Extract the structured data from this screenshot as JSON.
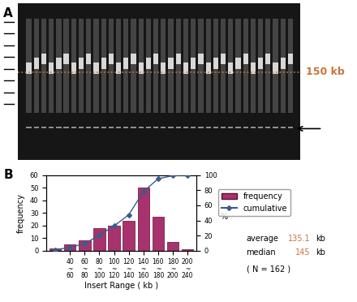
{
  "panel_a": {
    "panel_label": "A",
    "marker_label": "150 kb",
    "marker_color": "#c8743a"
  },
  "chart_data": {
    "type": "bar",
    "panel_label": "B",
    "categories": [
      null,
      "40\n~\n60",
      "60\n~\n80",
      "80\n~\n100",
      "100\n~\n120",
      "120\n~\n140",
      "140\n~\n160",
      "160\n~\n180",
      "180\n~\n200",
      "200\n~\n240"
    ],
    "series": [
      {
        "name": "frequency",
        "type": "bar",
        "color": "#a8326e",
        "values": [
          2,
          5,
          8,
          18,
          20,
          24,
          50,
          27,
          7,
          1
        ]
      },
      {
        "name": "cumulative",
        "type": "line",
        "axis": "y2",
        "color": "#3b5b8c",
        "marker": "diamond",
        "line_style": "solid",
        "values": [
          1.2,
          4.3,
          9.3,
          20.4,
          32.7,
          47.5,
          78.4,
          95.1,
          99.4,
          100
        ]
      }
    ],
    "x_label": "Insert Range ( kb )",
    "y_label": "frequency",
    "y2_label": "%",
    "ylim": [
      0,
      60
    ],
    "yticks": [
      0,
      10,
      20,
      30,
      40,
      50,
      60
    ],
    "y2lim": [
      0,
      100
    ],
    "y2ticks": [
      0,
      20,
      40,
      60,
      80,
      100
    ],
    "legend": "right",
    "summary": [
      {
        "name": "average",
        "value": 135.1,
        "unit": "kb",
        "color": "#c8743a"
      },
      {
        "name": "median",
        "value": 145,
        "unit": "kb",
        "color": "#c8743a"
      }
    ],
    "n_text": "( N = 162 )"
  }
}
